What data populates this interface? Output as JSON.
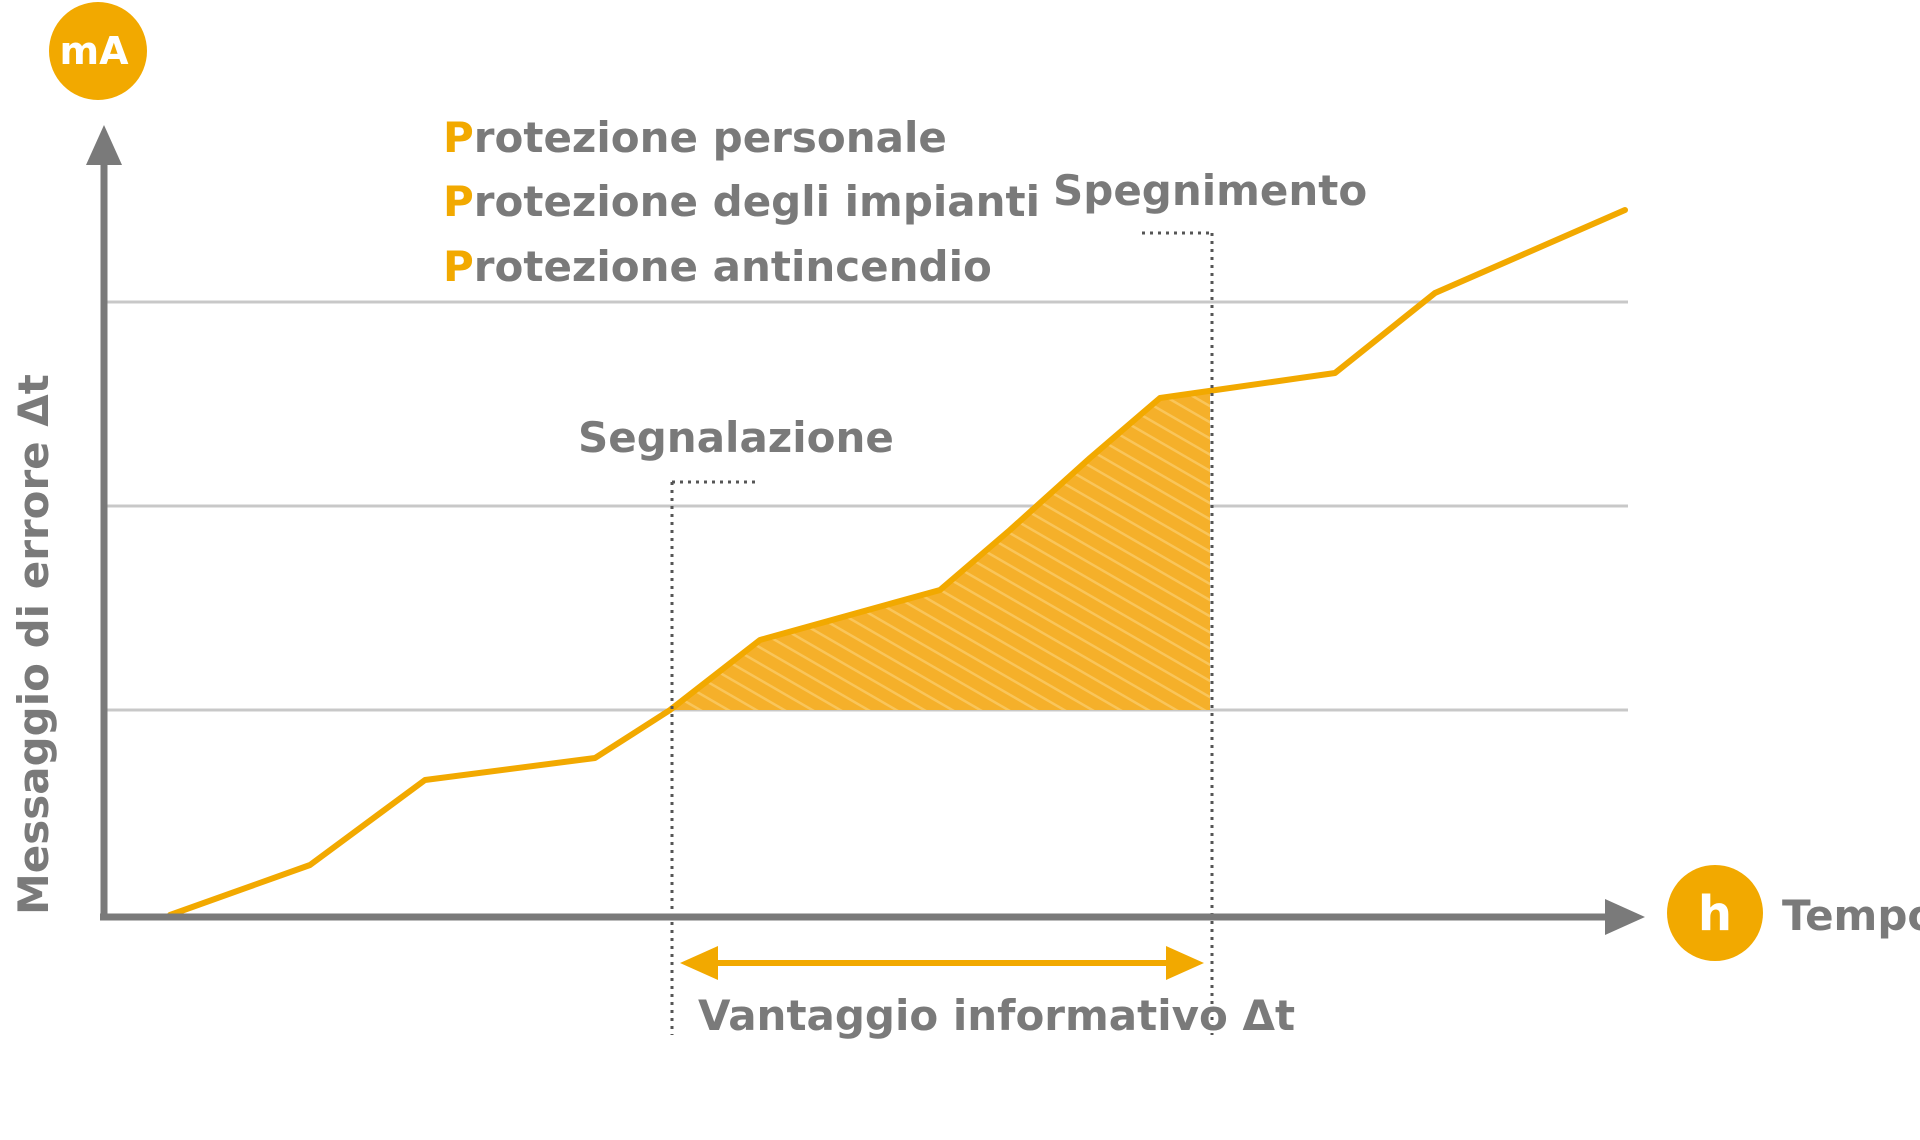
{
  "colors": {
    "accent": "#f2a900",
    "axis": "#7a7a7a",
    "text": "#7a7a7a",
    "grid": "#c8c8c8",
    "fill": "#f7b733"
  },
  "y_axis": {
    "unit_badge": "mA",
    "label": "Messaggio di errore Δt"
  },
  "x_axis": {
    "unit_badge": "h",
    "label": "Tempo"
  },
  "legend": [
    {
      "initial": "P",
      "rest": "rotezione personale"
    },
    {
      "initial": "P",
      "rest": "rotezione degli impianti"
    },
    {
      "initial": "P",
      "rest": "rotezione antincendio"
    }
  ],
  "annotations": {
    "signal": "Segnalazione",
    "shutdown": "Spegnimento",
    "advantage": "Vantaggio informativo Δt"
  }
}
